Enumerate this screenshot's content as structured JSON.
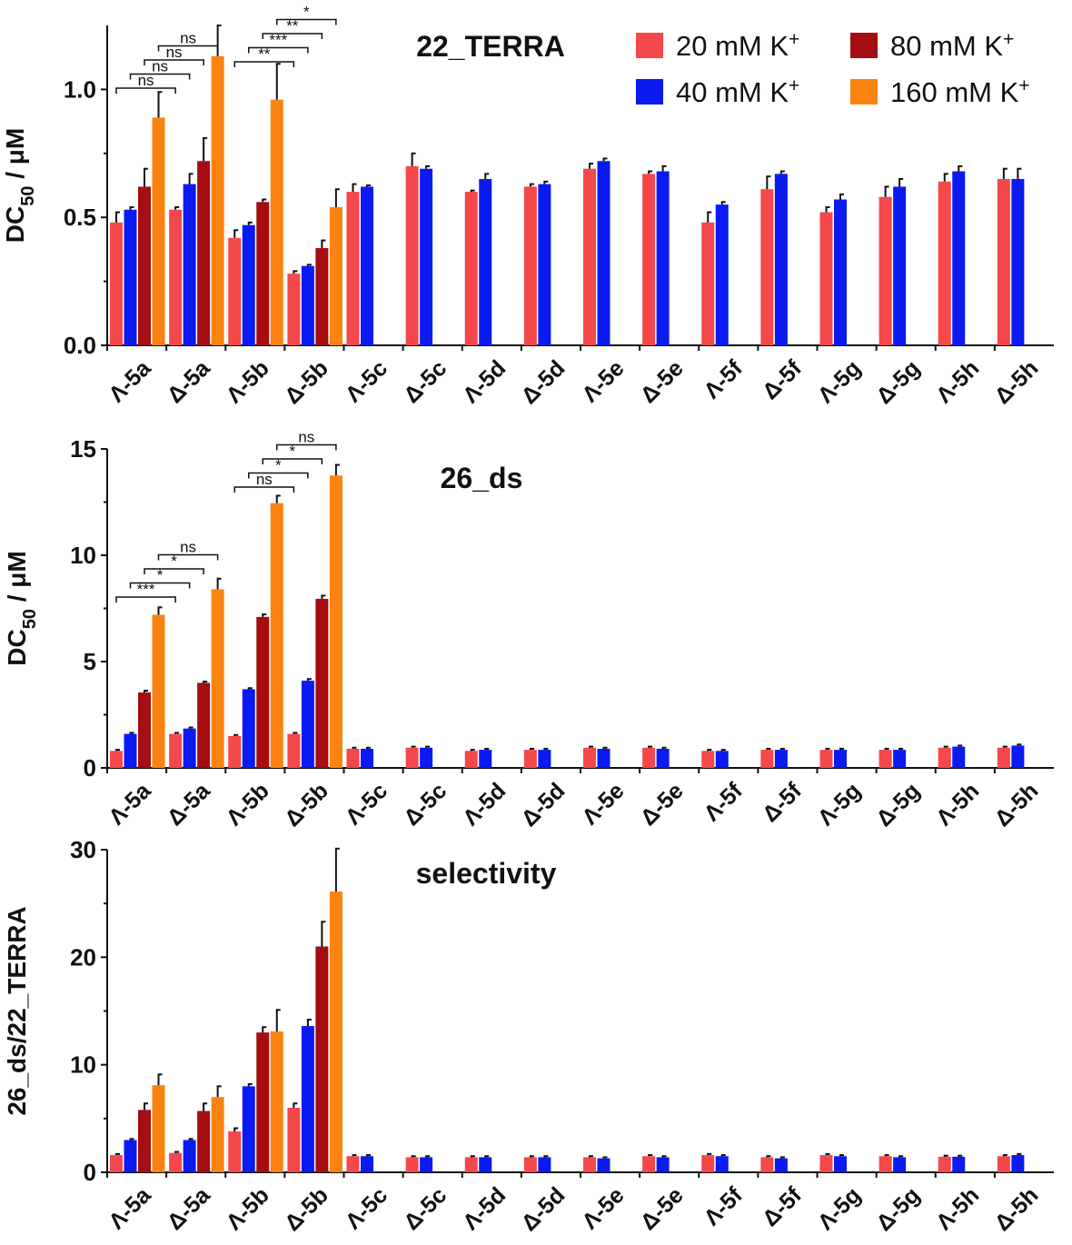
{
  "figure": {
    "series": [
      {
        "name": "20 mM K",
        "sup": "+",
        "color": "#f4484a"
      },
      {
        "name": "40 mM K",
        "sup": "+",
        "color": "#0a1af0"
      },
      {
        "name": "80 mM K",
        "sup": "+",
        "color": "#a50d10"
      },
      {
        "name": "160 mM K",
        "sup": "+",
        "color": "#fb8312"
      }
    ]
  },
  "chart_data": [
    {
      "type": "bar",
      "title": "22_TERRA",
      "ylabel": "DC",
      "ylabel_sub": "50",
      "ylabel_unit": " / μM",
      "ylim": [
        0,
        1.25
      ],
      "yticks": [
        0.0,
        0.5,
        1.0
      ],
      "ytick_labels": [
        "0.0",
        "0.5",
        "1.0"
      ],
      "categories": [
        "Λ-5a",
        "Δ-5a",
        "Λ-5b",
        "Δ-5b",
        "Λ-5c",
        "Δ-5c",
        "Λ-5d",
        "Δ-5d",
        "Λ-5e",
        "Δ-5e",
        "Λ-5f",
        "Δ-5f",
        "Λ-5g",
        "Δ-5g",
        "Λ-5h",
        "Δ-5h"
      ],
      "series": [
        {
          "name": "20 mM K+",
          "values": [
            0.48,
            0.53,
            0.42,
            0.28,
            0.6,
            0.7,
            0.6,
            0.62,
            0.69,
            0.67,
            0.48,
            0.61,
            0.52,
            0.58,
            0.64,
            0.65
          ],
          "errors": [
            0.04,
            0.01,
            0.03,
            0.01,
            0.03,
            0.05,
            0.005,
            0.01,
            0.02,
            0.01,
            0.04,
            0.05,
            0.02,
            0.04,
            0.03,
            0.04
          ]
        },
        {
          "name": "40 mM K+",
          "values": [
            0.53,
            0.63,
            0.47,
            0.31,
            0.62,
            0.69,
            0.65,
            0.63,
            0.72,
            0.68,
            0.55,
            0.67,
            0.57,
            0.62,
            0.68,
            0.65
          ],
          "errors": [
            0.01,
            0.04,
            0.01,
            0.005,
            0.005,
            0.01,
            0.02,
            0.01,
            0.01,
            0.02,
            0.01,
            0.01,
            0.02,
            0.03,
            0.02,
            0.04
          ]
        },
        {
          "name": "80 mM K+",
          "values": [
            0.62,
            0.72,
            0.56,
            0.38,
            null,
            null,
            null,
            null,
            null,
            null,
            null,
            null,
            null,
            null,
            null,
            null
          ],
          "errors": [
            0.07,
            0.09,
            0.01,
            0.03,
            null,
            null,
            null,
            null,
            null,
            null,
            null,
            null,
            null,
            null,
            null,
            null
          ]
        },
        {
          "name": "160 mM K+",
          "values": [
            0.89,
            1.13,
            0.96,
            0.54,
            null,
            null,
            null,
            null,
            null,
            null,
            null,
            null,
            null,
            null,
            null,
            null
          ],
          "errors": [
            0.1,
            0.12,
            0.14,
            0.07,
            null,
            null,
            null,
            null,
            null,
            null,
            null,
            null,
            null,
            null,
            null,
            null
          ]
        }
      ],
      "significance": [
        {
          "label": "ns",
          "from_cat": 0,
          "from_series": 0,
          "to_cat": 1,
          "to_series": 0,
          "level": 0
        },
        {
          "label": "ns",
          "from_cat": 0,
          "from_series": 1,
          "to_cat": 1,
          "to_series": 1,
          "level": 1
        },
        {
          "label": "ns",
          "from_cat": 0,
          "from_series": 2,
          "to_cat": 1,
          "to_series": 2,
          "level": 2
        },
        {
          "label": "ns",
          "from_cat": 0,
          "from_series": 3,
          "to_cat": 1,
          "to_series": 3,
          "level": 3
        },
        {
          "label": "**",
          "from_cat": 2,
          "from_series": 0,
          "to_cat": 3,
          "to_series": 0,
          "level": 0
        },
        {
          "label": "***",
          "from_cat": 2,
          "from_series": 1,
          "to_cat": 3,
          "to_series": 1,
          "level": 1
        },
        {
          "label": "**",
          "from_cat": 2,
          "from_series": 2,
          "to_cat": 3,
          "to_series": 2,
          "level": 2
        },
        {
          "label": "*",
          "from_cat": 2,
          "from_series": 3,
          "to_cat": 3,
          "to_series": 3,
          "level": 3
        }
      ],
      "legend": "top-right"
    },
    {
      "type": "bar",
      "title": "26_ds",
      "ylabel": "DC",
      "ylabel_sub": "50",
      "ylabel_unit": " / μM",
      "ylim": [
        0,
        15
      ],
      "yticks": [
        0,
        5,
        10,
        15
      ],
      "ytick_labels": [
        "0",
        "5",
        "10",
        "15"
      ],
      "categories": [
        "Λ-5a",
        "Δ-5a",
        "Λ-5b",
        "Δ-5b",
        "Λ-5c",
        "Δ-5c",
        "Λ-5d",
        "Δ-5d",
        "Λ-5e",
        "Δ-5e",
        "Λ-5f",
        "Δ-5f",
        "Λ-5g",
        "Δ-5g",
        "Λ-5h",
        "Δ-5h"
      ],
      "series": [
        {
          "name": "20 mM K+",
          "values": [
            0.8,
            1.6,
            1.5,
            1.6,
            0.9,
            0.95,
            0.8,
            0.85,
            0.95,
            0.95,
            0.8,
            0.85,
            0.85,
            0.85,
            0.95,
            0.95
          ],
          "errors": [
            0.05,
            0.05,
            0.05,
            0.05,
            0.05,
            0.05,
            0.05,
            0.05,
            0.05,
            0.05,
            0.05,
            0.05,
            0.05,
            0.05,
            0.05,
            0.05
          ]
        },
        {
          "name": "40 mM K+",
          "values": [
            1.6,
            1.85,
            3.7,
            4.1,
            0.9,
            0.95,
            0.85,
            0.85,
            0.9,
            0.9,
            0.8,
            0.85,
            0.85,
            0.85,
            1.0,
            1.05
          ],
          "errors": [
            0.05,
            0.05,
            0.05,
            0.08,
            0.05,
            0.05,
            0.05,
            0.05,
            0.05,
            0.05,
            0.05,
            0.05,
            0.05,
            0.05,
            0.05,
            0.05
          ]
        },
        {
          "name": "80 mM K+",
          "values": [
            3.55,
            4.0,
            7.1,
            7.95,
            null,
            null,
            null,
            null,
            null,
            null,
            null,
            null,
            null,
            null,
            null,
            null
          ],
          "errors": [
            0.08,
            0.06,
            0.12,
            0.15,
            null,
            null,
            null,
            null,
            null,
            null,
            null,
            null,
            null,
            null,
            null,
            null
          ]
        },
        {
          "name": "160 mM K+",
          "values": [
            7.2,
            8.4,
            12.45,
            13.75,
            null,
            null,
            null,
            null,
            null,
            null,
            null,
            null,
            null,
            null,
            null,
            null
          ],
          "errors": [
            0.35,
            0.5,
            0.35,
            0.5,
            null,
            null,
            null,
            null,
            null,
            null,
            null,
            null,
            null,
            null,
            null,
            null
          ]
        }
      ],
      "significance": [
        {
          "label": "***",
          "from_cat": 0,
          "from_series": 0,
          "to_cat": 1,
          "to_series": 0,
          "level": 0
        },
        {
          "label": "*",
          "from_cat": 0,
          "from_series": 1,
          "to_cat": 1,
          "to_series": 1,
          "level": 1
        },
        {
          "label": "*",
          "from_cat": 0,
          "from_series": 2,
          "to_cat": 1,
          "to_series": 2,
          "level": 2
        },
        {
          "label": "ns",
          "from_cat": 0,
          "from_series": 3,
          "to_cat": 1,
          "to_series": 3,
          "level": 3
        },
        {
          "label": "ns",
          "from_cat": 2,
          "from_series": 0,
          "to_cat": 3,
          "to_series": 0,
          "level": 0
        },
        {
          "label": "*",
          "from_cat": 2,
          "from_series": 1,
          "to_cat": 3,
          "to_series": 1,
          "level": 1
        },
        {
          "label": "*",
          "from_cat": 2,
          "from_series": 2,
          "to_cat": 3,
          "to_series": 2,
          "level": 2
        },
        {
          "label": "ns",
          "from_cat": 2,
          "from_series": 3,
          "to_cat": 3,
          "to_series": 3,
          "level": 3
        }
      ]
    },
    {
      "type": "bar",
      "title": "selectivity",
      "ylabel": "26_ds/22_TERRA",
      "ylim": [
        0,
        30
      ],
      "yticks": [
        0,
        10,
        20,
        30
      ],
      "ytick_labels": [
        "0",
        "10",
        "20",
        "30"
      ],
      "categories": [
        "Λ-5a",
        "Δ-5a",
        "Λ-5b",
        "Δ-5b",
        "Λ-5c",
        "Δ-5c",
        "Λ-5d",
        "Δ-5d",
        "Λ-5e",
        "Δ-5e",
        "Λ-5f",
        "Δ-5f",
        "Λ-5g",
        "Δ-5g",
        "Λ-5h",
        "Δ-5h"
      ],
      "series": [
        {
          "name": "20 mM K+",
          "values": [
            1.6,
            1.8,
            3.8,
            6.0,
            1.5,
            1.4,
            1.4,
            1.4,
            1.4,
            1.5,
            1.6,
            1.4,
            1.6,
            1.5,
            1.45,
            1.5
          ],
          "errors": [
            0.1,
            0.1,
            0.3,
            0.4,
            0.1,
            0.1,
            0.1,
            0.1,
            0.1,
            0.1,
            0.1,
            0.1,
            0.1,
            0.1,
            0.1,
            0.1
          ]
        },
        {
          "name": "40 mM K+",
          "values": [
            3.0,
            3.0,
            8.0,
            13.6,
            1.5,
            1.4,
            1.4,
            1.4,
            1.3,
            1.4,
            1.5,
            1.3,
            1.5,
            1.4,
            1.45,
            1.6
          ],
          "errors": [
            0.1,
            0.1,
            0.2,
            0.6,
            0.1,
            0.1,
            0.1,
            0.1,
            0.1,
            0.1,
            0.1,
            0.1,
            0.1,
            0.1,
            0.1,
            0.1
          ]
        },
        {
          "name": "80 mM K+",
          "values": [
            5.8,
            5.7,
            13.0,
            21.0,
            null,
            null,
            null,
            null,
            null,
            null,
            null,
            null,
            null,
            null,
            null,
            null
          ],
          "errors": [
            0.6,
            0.7,
            0.5,
            2.3,
            null,
            null,
            null,
            null,
            null,
            null,
            null,
            null,
            null,
            null,
            null,
            null
          ]
        },
        {
          "name": "160 mM K+",
          "values": [
            8.1,
            7.0,
            13.1,
            26.1,
            null,
            null,
            null,
            null,
            null,
            null,
            null,
            null,
            null,
            null,
            null,
            null
          ],
          "errors": [
            1.0,
            1.0,
            2.0,
            4.0,
            null,
            null,
            null,
            null,
            null,
            null,
            null,
            null,
            null,
            null,
            null,
            null
          ]
        }
      ]
    }
  ]
}
